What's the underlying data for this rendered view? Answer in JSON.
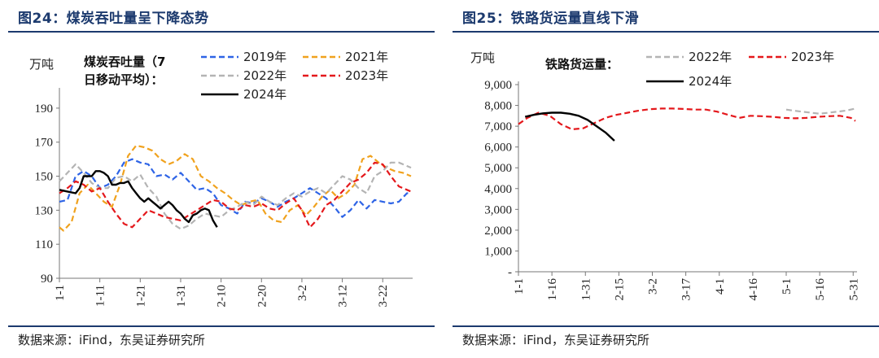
{
  "chart_data": [
    {
      "type": "line",
      "figure_title": "图24：煤炭吞吐量呈下降态势",
      "source": "数据来源：iFind，东吴证券研究所",
      "unit_label": "万吨",
      "inline_title_line1": "煤炭吞吐量（7",
      "inline_title_line2": "日移动平均）：",
      "ylim": [
        90,
        200
      ],
      "yticks": [
        90,
        110,
        130,
        150,
        170,
        190
      ],
      "xlim": [
        1,
        88
      ],
      "x_ticks": [
        {
          "x": 1,
          "label": "1-1"
        },
        {
          "x": 11,
          "label": "1-11"
        },
        {
          "x": 21,
          "label": "1-21"
        },
        {
          "x": 31,
          "label": "1-31"
        },
        {
          "x": 41,
          "label": "2-10"
        },
        {
          "x": 51,
          "label": "2-20"
        },
        {
          "x": 61,
          "label": "3-2"
        },
        {
          "x": 71,
          "label": "3-12"
        },
        {
          "x": 81,
          "label": "3-22"
        }
      ],
      "series": [
        {
          "name": "2019年",
          "color": "#2e64e6",
          "dash": "dash",
          "x": [
            1,
            3,
            5,
            7,
            9,
            11,
            13,
            15,
            17,
            19,
            21,
            23,
            25,
            27,
            29,
            31,
            33,
            35,
            37,
            39,
            41,
            43,
            45,
            47,
            49,
            51,
            53,
            55,
            57,
            59,
            61,
            63,
            65,
            67,
            69,
            71,
            73,
            75,
            77,
            79,
            81,
            83,
            85,
            87,
            88
          ],
          "y": [
            135,
            136,
            150,
            153,
            150,
            143,
            145,
            150,
            158,
            160,
            158,
            157,
            150,
            151,
            148,
            152,
            147,
            142,
            143,
            140,
            133,
            131,
            128,
            135,
            134,
            137,
            135,
            132,
            135,
            137,
            140,
            143,
            140,
            137,
            132,
            126,
            130,
            136,
            131,
            136,
            135,
            134,
            135,
            140,
            140
          ]
        },
        {
          "name": "2021年",
          "color": "#f0a21e",
          "dash": "dash",
          "x": [
            1,
            2,
            4,
            6,
            8,
            10,
            12,
            14,
            16,
            18,
            20,
            22,
            24,
            26,
            28,
            30,
            32,
            34,
            36,
            38,
            40,
            42,
            44,
            46,
            48,
            50,
            52,
            54,
            56,
            58,
            60,
            62,
            64,
            66,
            68,
            70,
            72,
            74,
            76,
            78,
            80,
            82,
            84,
            86,
            88
          ],
          "y": [
            120,
            118,
            123,
            140,
            145,
            140,
            135,
            132,
            145,
            162,
            168,
            167,
            165,
            160,
            157,
            159,
            163,
            160,
            150,
            147,
            143,
            140,
            136,
            133,
            135,
            136,
            128,
            124,
            123,
            130,
            133,
            127,
            132,
            138,
            142,
            137,
            140,
            145,
            160,
            162,
            158,
            155,
            153,
            152,
            150
          ]
        },
        {
          "name": "2022年",
          "color": "#b4b4b4",
          "dash": "dash",
          "x": [
            1,
            3,
            5,
            7,
            9,
            11,
            13,
            15,
            17,
            19,
            21,
            23,
            25,
            27,
            29,
            31,
            33,
            35,
            37,
            39,
            41,
            43,
            45,
            47,
            49,
            51,
            53,
            55,
            57,
            59,
            61,
            63,
            65,
            67,
            69,
            71,
            73,
            75,
            77,
            79,
            81,
            83,
            85,
            87,
            88
          ],
          "y": [
            147,
            152,
            157,
            152,
            146,
            143,
            143,
            149,
            150,
            147,
            151,
            143,
            138,
            128,
            122,
            119,
            121,
            125,
            128,
            127,
            126,
            130,
            132,
            135,
            133,
            138,
            135,
            133,
            137,
            140,
            138,
            141,
            143,
            140,
            145,
            150,
            148,
            143,
            140,
            150,
            153,
            158,
            158,
            156,
            155
          ]
        },
        {
          "name": "2023年",
          "color": "#e4181c",
          "dash": "dash",
          "x": [
            1,
            3,
            5,
            7,
            9,
            11,
            13,
            15,
            17,
            19,
            21,
            23,
            25,
            27,
            29,
            31,
            33,
            35,
            37,
            39,
            41,
            43,
            45,
            47,
            49,
            51,
            53,
            55,
            57,
            59,
            61,
            63,
            65,
            67,
            69,
            71,
            73,
            75,
            77,
            79,
            81,
            83,
            85,
            87,
            88
          ],
          "y": [
            140,
            143,
            147,
            145,
            141,
            143,
            135,
            128,
            122,
            120,
            125,
            130,
            128,
            126,
            125,
            124,
            127,
            130,
            133,
            136,
            135,
            131,
            130,
            133,
            132,
            134,
            131,
            130,
            134,
            137,
            130,
            120,
            125,
            133,
            136,
            141,
            146,
            148,
            152,
            158,
            157,
            150,
            144,
            142,
            141
          ]
        },
        {
          "name": "2024年",
          "color": "#000000",
          "dash": "solid",
          "x": [
            1,
            3,
            5,
            6,
            7,
            8,
            9,
            10,
            11,
            12,
            13,
            14,
            15,
            16,
            17,
            18,
            19,
            20,
            21,
            22,
            23,
            24,
            25,
            26,
            27,
            28,
            29,
            30,
            31,
            32,
            33,
            34,
            35,
            36,
            37,
            38,
            39,
            40
          ],
          "y": [
            142,
            141,
            140,
            143,
            150,
            150,
            150,
            153,
            153,
            152,
            150,
            145,
            145,
            146,
            146,
            147,
            143,
            140,
            137,
            135,
            137,
            135,
            133,
            131,
            133,
            135,
            133,
            130,
            128,
            125,
            123,
            127,
            128,
            130,
            131,
            130,
            124,
            120
          ]
        }
      ]
    },
    {
      "type": "line",
      "figure_title": "图25：铁路货运量直线下滑",
      "source": "数据来源：iFind，东吴证券研究所",
      "unit_label": "万吨",
      "inline_title": "铁路货运量：",
      "ylim": [
        0,
        9000
      ],
      "yticks": [
        0,
        1000,
        2000,
        3000,
        4000,
        5000,
        6000,
        7000,
        8000,
        9000
      ],
      "ytick_labels": [
        "-",
        "1,000",
        "2,000",
        "3,000",
        "4,000",
        "5,000",
        "6,000",
        "7,000",
        "8,000",
        "9,000"
      ],
      "xlim": [
        1,
        152
      ],
      "x_ticks": [
        {
          "x": 1,
          "label": "1-1"
        },
        {
          "x": 16,
          "label": "1-16"
        },
        {
          "x": 31,
          "label": "1-31"
        },
        {
          "x": 46,
          "label": "2-15"
        },
        {
          "x": 61,
          "label": "3-2"
        },
        {
          "x": 76,
          "label": "3-17"
        },
        {
          "x": 91,
          "label": "4-1"
        },
        {
          "x": 106,
          "label": "4-16"
        },
        {
          "x": 121,
          "label": "5-1"
        },
        {
          "x": 136,
          "label": "5-16"
        },
        {
          "x": 151,
          "label": "5-31"
        }
      ],
      "series": [
        {
          "name": "2022年",
          "color": "#b4b4b4",
          "dash": "dash",
          "x": [
            121,
            124,
            128,
            132,
            136,
            140,
            144,
            148,
            152
          ],
          "y": [
            7800,
            7750,
            7700,
            7650,
            7600,
            7650,
            7700,
            7750,
            7850
          ]
        },
        {
          "name": "2023年",
          "color": "#e4181c",
          "dash": "dash",
          "x": [
            1,
            5,
            10,
            15,
            20,
            25,
            30,
            35,
            40,
            45,
            50,
            55,
            60,
            65,
            70,
            75,
            80,
            85,
            90,
            95,
            100,
            105,
            110,
            115,
            120,
            125,
            130,
            135,
            140,
            145,
            150,
            152
          ],
          "y": [
            7100,
            7400,
            7650,
            7500,
            7100,
            6850,
            6900,
            7150,
            7400,
            7550,
            7650,
            7750,
            7820,
            7850,
            7850,
            7830,
            7800,
            7800,
            7700,
            7550,
            7400,
            7500,
            7480,
            7450,
            7400,
            7380,
            7400,
            7450,
            7480,
            7500,
            7400,
            7250
          ]
        },
        {
          "name": "2024年",
          "color": "#000000",
          "dash": "solid",
          "x": [
            4,
            8,
            12,
            16,
            20,
            24,
            28,
            32,
            36,
            40,
            44
          ],
          "y": [
            7450,
            7550,
            7620,
            7650,
            7650,
            7600,
            7500,
            7300,
            7000,
            6700,
            6300
          ]
        }
      ]
    }
  ]
}
